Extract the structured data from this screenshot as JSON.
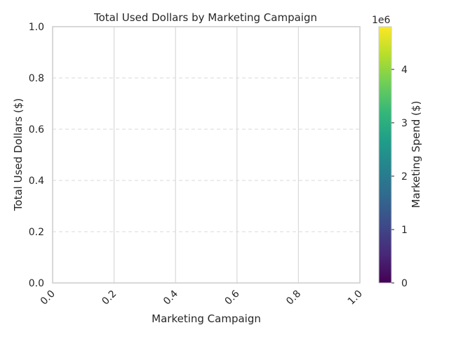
{
  "chart_data": {
    "type": "bar",
    "title": "Total Used Dollars by Marketing Campaign",
    "xlabel": "Marketing Campaign",
    "ylabel": "Total Used Dollars ($)",
    "categories": [],
    "values": [],
    "xlim": [
      0,
      1
    ],
    "ylim": [
      0,
      1
    ],
    "x_ticks": [
      "0.0",
      "0.2",
      "0.4",
      "0.6",
      "0.8",
      "1.0"
    ],
    "y_ticks": [
      "0.0",
      "0.2",
      "0.4",
      "0.6",
      "0.8",
      "1.0"
    ],
    "x_tick_rotation": 45,
    "grid": {
      "x": "solid",
      "y": "dashed"
    },
    "colorbar": {
      "label": "Marketing Spend ($)",
      "colormap": "viridis",
      "range": [
        0,
        4800000
      ],
      "offset_text": "1e6",
      "ticks": [
        {
          "value": 0,
          "label": "0"
        },
        {
          "value": 1000000,
          "label": "1"
        },
        {
          "value": 2000000,
          "label": "2"
        },
        {
          "value": 3000000,
          "label": "3"
        },
        {
          "value": 4000000,
          "label": "4"
        }
      ]
    },
    "colors": {
      "viridis": [
        "#440154",
        "#482878",
        "#3e4989",
        "#31688e",
        "#26828e",
        "#1f9e89",
        "#35b779",
        "#6ece58",
        "#b5de2b",
        "#fde725"
      ],
      "frame": "#cccccc",
      "grid": "#d9d9d9",
      "text": "#262626"
    }
  }
}
